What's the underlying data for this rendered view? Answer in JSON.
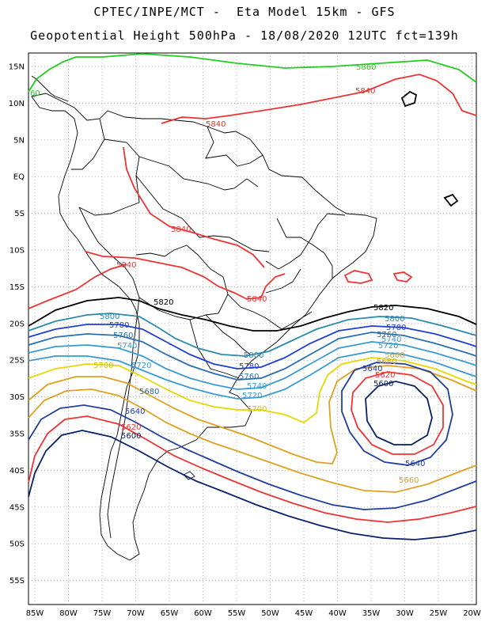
{
  "header": {
    "line1": "CPTEC/INPE/MCT -  Eta Model 15km - GFS",
    "line2": "Geopotential Height 500hPa - 18/08/2020 12UTC fct=139h"
  },
  "axes": {
    "lat_labels": [
      "15N",
      "10N",
      "5N",
      "EQ",
      "5S",
      "10S",
      "15S",
      "20S",
      "25S",
      "30S",
      "35S",
      "40S",
      "45S",
      "50S",
      "55S"
    ],
    "lon_labels": [
      "85W",
      "80W",
      "75W",
      "70W",
      "65W",
      "60W",
      "55W",
      "50W",
      "45W",
      "40W",
      "35W",
      "30W",
      "25W",
      "20W"
    ]
  },
  "contour_labels": [
    {
      "text": "5860",
      "color": "#22cc22"
    },
    {
      "text": "60",
      "color": "#22cc22"
    },
    {
      "text": "5840",
      "color": "#ee3333"
    },
    {
      "text": "5840",
      "color": "#ee3333"
    },
    {
      "text": "5840",
      "color": "#ee3333"
    },
    {
      "text": "5840",
      "color": "#ee3333"
    },
    {
      "text": "5840",
      "color": "#ee3333"
    },
    {
      "text": "5820",
      "color": "#000000"
    },
    {
      "text": "5820",
      "color": "#000000"
    },
    {
      "text": "5800",
      "color": "#2a8ab0"
    },
    {
      "text": "5800",
      "color": "#2a8ab0"
    },
    {
      "text": "5800",
      "color": "#2a8ab0"
    },
    {
      "text": "5780",
      "color": "#1f3fd0"
    },
    {
      "text": "5780",
      "color": "#1f3fd0"
    },
    {
      "text": "5780",
      "color": "#1f3fd0"
    },
    {
      "text": "5760",
      "color": "#2a6fb0"
    },
    {
      "text": "5760",
      "color": "#2a6fb0"
    },
    {
      "text": "5760",
      "color": "#2a6fb0"
    },
    {
      "text": "5740",
      "color": "#3a9ad0"
    },
    {
      "text": "5740",
      "color": "#3a9ad0"
    },
    {
      "text": "5740",
      "color": "#3a9ad0"
    },
    {
      "text": "5720",
      "color": "#3a9ad0"
    },
    {
      "text": "5720",
      "color": "#3a9ad0"
    },
    {
      "text": "5720",
      "color": "#3a9ad0"
    },
    {
      "text": "5700",
      "color": "#e6d800"
    },
    {
      "text": "5700",
      "color": "#e6d800"
    },
    {
      "text": "5680",
      "color": "#2a6fb0"
    },
    {
      "text": "5680",
      "color": "#e0a020"
    },
    {
      "text": "5660",
      "color": "#e0a020"
    },
    {
      "text": "5660",
      "color": "#e0a020"
    },
    {
      "text": "5640",
      "color": "#1f3fa0"
    },
    {
      "text": "5640",
      "color": "#1f3fa0"
    },
    {
      "text": "5640",
      "color": "#1f3fa0"
    },
    {
      "text": "5620",
      "color": "#ee3333"
    },
    {
      "text": "5620",
      "color": "#ee3333"
    },
    {
      "text": "5600",
      "color": "#0a1f6a"
    },
    {
      "text": "5600",
      "color": "#0a1f6a"
    },
    {
      "text": "5600",
      "color": "#0a1f6a"
    }
  ],
  "colors": {
    "green": "#22cc22",
    "red": "#ee3333",
    "black": "#000000",
    "cyan": "#2a8ab0",
    "blue": "#1f3fd0",
    "steel": "#2a6fb0",
    "light": "#3a9ad0",
    "yellow": "#e6d800",
    "orange": "#e0a020",
    "navy": "#0a1f6a"
  }
}
